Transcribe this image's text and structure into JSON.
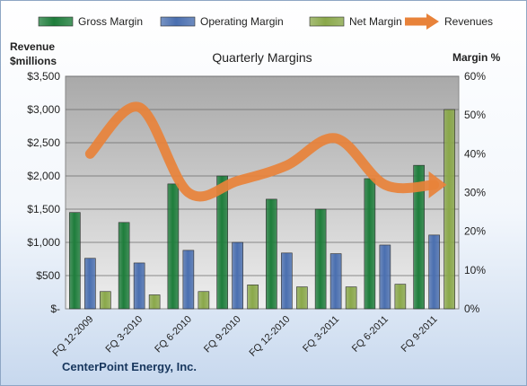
{
  "chart_data": {
    "type": "bar",
    "title": "Quarterly Margins",
    "ylabel_left": "Revenue\n$millions",
    "ylabel_right": "Margin %",
    "categories": [
      "FQ 12-2009",
      "FQ 3-2010",
      "FQ 6-2010",
      "FQ 9-2010",
      "FQ 12-2010",
      "FQ 3-2011",
      "FQ 6-2011",
      "FQ 9-2011"
    ],
    "left_axis": {
      "min": 0,
      "max": 3500,
      "ticks": [
        0,
        500,
        1000,
        1500,
        2000,
        2500,
        3000,
        3500
      ],
      "tick_labels": [
        "$-",
        "$500",
        "$1,000",
        "$1,500",
        "$2,000",
        "$2,500",
        "$3,000",
        "$3,500"
      ]
    },
    "right_axis": {
      "min": 0,
      "max": 60,
      "ticks": [
        0,
        10,
        20,
        30,
        40,
        50,
        60
      ],
      "tick_labels": [
        "0%",
        "10%",
        "20%",
        "30%",
        "40%",
        "50%",
        "60%"
      ]
    },
    "series": [
      {
        "name": "Gross Margin",
        "axis": "left",
        "kind": "bar",
        "color": "#1e7d3b",
        "values": [
          1450,
          1300,
          1880,
          2000,
          1650,
          1500,
          1960,
          2160
        ]
      },
      {
        "name": "Operating Margin",
        "axis": "left",
        "kind": "bar",
        "color": "#4a6fb0",
        "values": [
          760,
          690,
          880,
          1000,
          840,
          830,
          960,
          1110
        ]
      },
      {
        "name": "Net Margin",
        "axis": "left",
        "kind": "bar",
        "color": "#8aa84a",
        "values": [
          260,
          210,
          260,
          360,
          330,
          330,
          370,
          3000
        ]
      },
      {
        "name": "Revenues",
        "axis": "right",
        "kind": "line",
        "color": "#e8823a",
        "values": [
          40,
          52,
          30,
          33,
          37,
          44,
          32,
          32
        ]
      }
    ],
    "grid": true,
    "legend": "top"
  },
  "company": "CenterPoint Energy, Inc."
}
